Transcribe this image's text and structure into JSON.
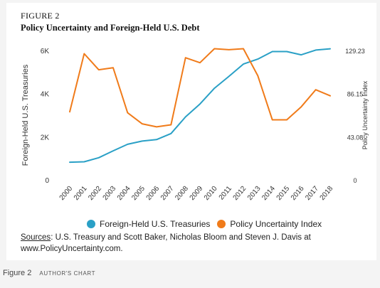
{
  "figure": {
    "label": "FIGURE 2",
    "title": "Policy Uncertainty and Foreign-Held U.S. Debt"
  },
  "chart_data": {
    "type": "line",
    "title": "Policy Uncertainty and Foreign-Held U.S. Debt",
    "x": [
      "2000",
      "2001",
      "2002",
      "2003",
      "2004",
      "2005",
      "2006",
      "2007",
      "2008",
      "2009",
      "2010",
      "2011",
      "2012",
      "2013",
      "2014",
      "2015",
      "2016",
      "2017",
      "2018"
    ],
    "ylabel_left": "Foreign-Held U.S. Treasuries",
    "ylabel_right": "Policy Uncertainty Index",
    "yticks_left": [
      "0",
      "2K",
      "4K",
      "6K"
    ],
    "yticks_right": [
      "0",
      "43.08",
      "86.15",
      "129.23"
    ],
    "ylim_left": [
      0,
      6000
    ],
    "ylim_right": [
      0,
      129.23
    ],
    "grid": false,
    "legend_position": "bottom",
    "series": [
      {
        "name": "Foreign-Held U.S. Treasuries",
        "axis": "left",
        "color": "#2aa0c6",
        "values": [
          820,
          840,
          1030,
          1350,
          1650,
          1800,
          1870,
          2150,
          2920,
          3520,
          4250,
          4800,
          5370,
          5600,
          5950,
          5950,
          5800,
          6020,
          6080
        ]
      },
      {
        "name": "Policy Uncertainty Index",
        "axis": "right",
        "color": "#f07b1a",
        "values": [
          68,
          126,
          110,
          112,
          67,
          56,
          53,
          55,
          122,
          117,
          131,
          130,
          131,
          104,
          60,
          60,
          73,
          90,
          84
        ]
      }
    ]
  },
  "legend": {
    "items": [
      {
        "label": "Foreign-Held U.S. Treasuries",
        "color": "#2aa0c6"
      },
      {
        "label": "Policy Uncertainty Index",
        "color": "#f07b1a"
      }
    ]
  },
  "sources": {
    "label": "Sources",
    "text": ": U.S. Treasury and Scott Baker, Nicholas Bloom and Steven J. Davis at www.PolicyUncertainty.com."
  },
  "caption": {
    "label": "Figure 2",
    "credit": "AUTHOR'S CHART"
  }
}
